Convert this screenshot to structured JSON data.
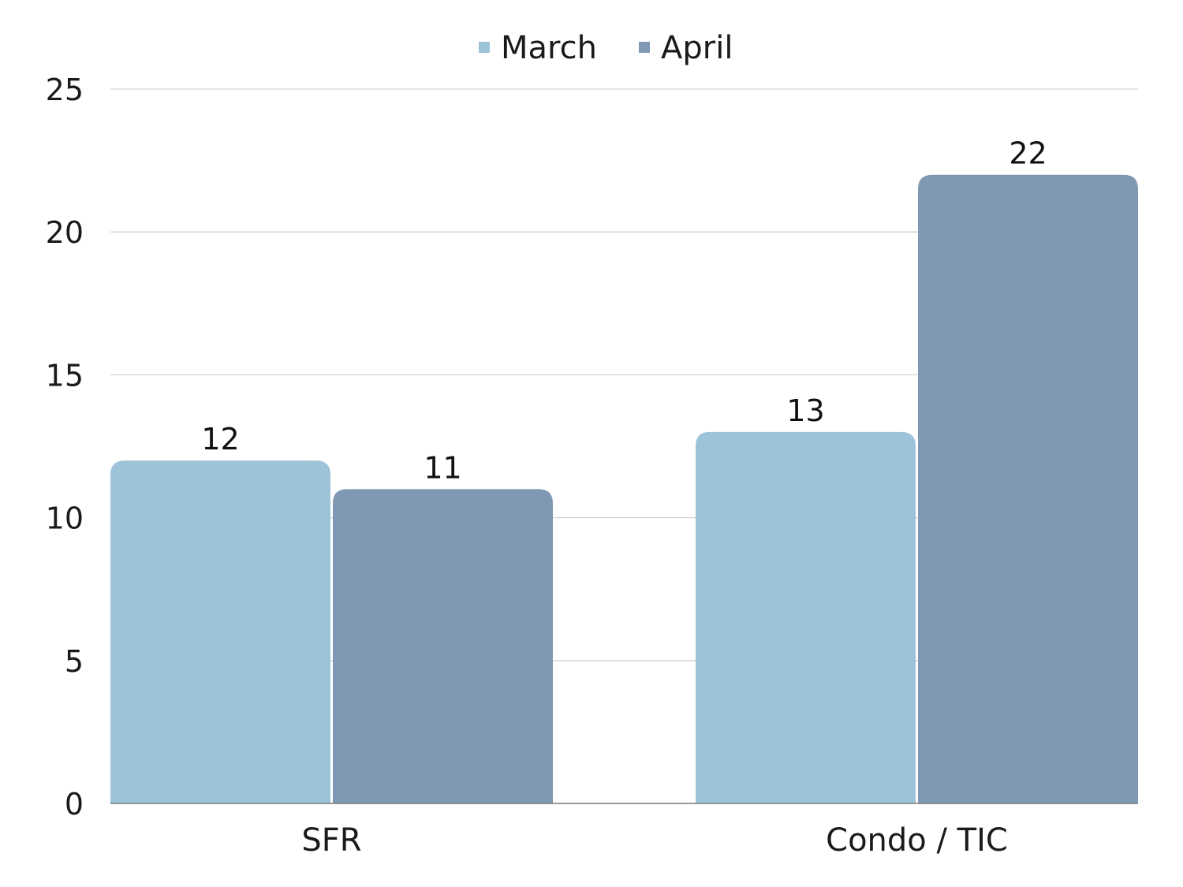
{
  "chart_data": {
    "type": "bar",
    "categories": [
      "SFR",
      "Condo / TIC"
    ],
    "series": [
      {
        "name": "March",
        "values": [
          12,
          13
        ],
        "color": "#9dc3d8"
      },
      {
        "name": "April",
        "values": [
          11,
          22
        ],
        "color": "#7f98b4"
      }
    ],
    "ylim": [
      0,
      25
    ],
    "yticks": [
      0,
      5,
      10,
      15,
      20,
      25
    ],
    "grid": true,
    "legend_position": "top-center",
    "data_labels": true
  }
}
